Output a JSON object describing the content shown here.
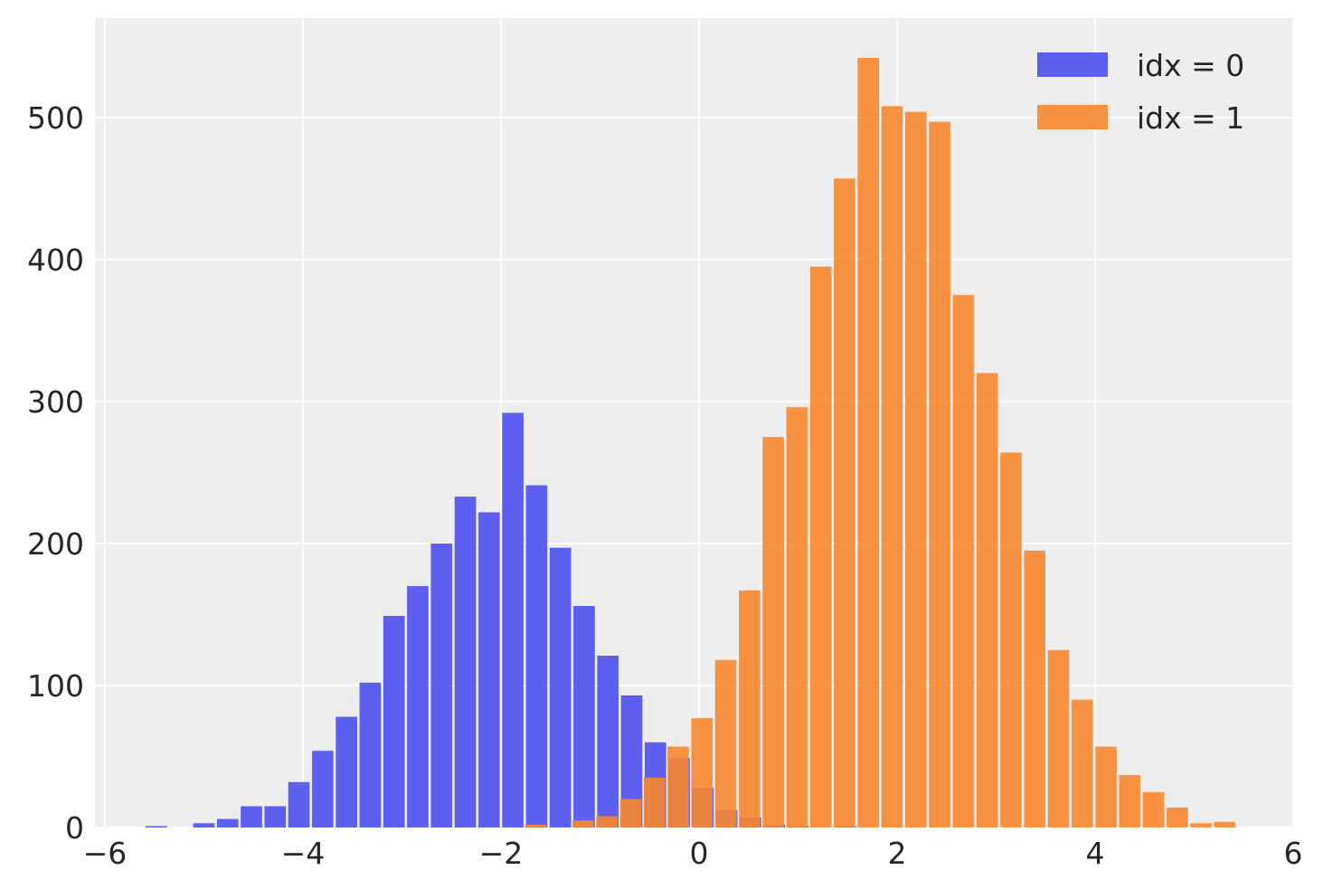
{
  "chart_data": {
    "type": "bar",
    "title": "",
    "xlabel": "",
    "ylabel": "",
    "xlim": [
      -6.1,
      6
    ],
    "ylim": [
      0,
      570
    ],
    "xticks": [
      -6,
      -4,
      -2,
      0,
      2,
      4,
      6
    ],
    "xtick_labels": [
      "−6",
      "−4",
      "−2",
      "0",
      "2",
      "4",
      "6"
    ],
    "yticks": [
      0,
      100,
      200,
      300,
      400,
      500
    ],
    "ytick_labels": [
      "0",
      "100",
      "200",
      "300",
      "400",
      "500"
    ],
    "grid": true,
    "legend_position": "top-right",
    "series": [
      {
        "name": "idx = 0",
        "color": "#4d4ff0",
        "bins": [
          {
            "x": -5.48,
            "value": 1
          },
          {
            "x": -5.0,
            "value": 3
          },
          {
            "x": -4.76,
            "value": 6
          },
          {
            "x": -4.52,
            "value": 15
          },
          {
            "x": -4.28,
            "value": 15
          },
          {
            "x": -4.04,
            "value": 32
          },
          {
            "x": -3.8,
            "value": 54
          },
          {
            "x": -3.56,
            "value": 78
          },
          {
            "x": -3.32,
            "value": 102
          },
          {
            "x": -3.08,
            "value": 149
          },
          {
            "x": -2.84,
            "value": 170
          },
          {
            "x": -2.6,
            "value": 200
          },
          {
            "x": -2.36,
            "value": 233
          },
          {
            "x": -2.12,
            "value": 222
          },
          {
            "x": -1.88,
            "value": 292
          },
          {
            "x": -1.64,
            "value": 241
          },
          {
            "x": -1.4,
            "value": 197
          },
          {
            "x": -1.16,
            "value": 156
          },
          {
            "x": -0.92,
            "value": 121
          },
          {
            "x": -0.68,
            "value": 93
          },
          {
            "x": -0.44,
            "value": 60
          },
          {
            "x": -0.2,
            "value": 49
          },
          {
            "x": 0.04,
            "value": 28
          },
          {
            "x": 0.28,
            "value": 12
          },
          {
            "x": 0.52,
            "value": 7
          },
          {
            "x": 0.76,
            "value": 2
          },
          {
            "x": 1.0,
            "value": 1
          },
          {
            "x": 1.48,
            "value": 1
          }
        ]
      },
      {
        "name": "idx = 1",
        "color": "#f7872f",
        "bins": [
          {
            "x": -1.65,
            "value": 2
          },
          {
            "x": -1.17,
            "value": 5
          },
          {
            "x": -0.93,
            "value": 8
          },
          {
            "x": -0.69,
            "value": 20
          },
          {
            "x": -0.45,
            "value": 35
          },
          {
            "x": -0.21,
            "value": 57
          },
          {
            "x": 0.03,
            "value": 77
          },
          {
            "x": 0.27,
            "value": 118
          },
          {
            "x": 0.51,
            "value": 167
          },
          {
            "x": 0.75,
            "value": 275
          },
          {
            "x": 0.99,
            "value": 296
          },
          {
            "x": 1.23,
            "value": 395
          },
          {
            "x": 1.47,
            "value": 457
          },
          {
            "x": 1.71,
            "value": 542
          },
          {
            "x": 1.95,
            "value": 508
          },
          {
            "x": 2.19,
            "value": 504
          },
          {
            "x": 2.43,
            "value": 497
          },
          {
            "x": 2.67,
            "value": 375
          },
          {
            "x": 2.91,
            "value": 320
          },
          {
            "x": 3.15,
            "value": 264
          },
          {
            "x": 3.39,
            "value": 195
          },
          {
            "x": 3.63,
            "value": 125
          },
          {
            "x": 3.87,
            "value": 90
          },
          {
            "x": 4.11,
            "value": 57
          },
          {
            "x": 4.35,
            "value": 37
          },
          {
            "x": 4.59,
            "value": 25
          },
          {
            "x": 4.83,
            "value": 14
          },
          {
            "x": 5.07,
            "value": 3
          },
          {
            "x": 5.31,
            "value": 4
          }
        ]
      }
    ],
    "bin_width": 0.24
  }
}
